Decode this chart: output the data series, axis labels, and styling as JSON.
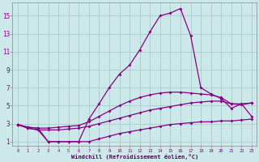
{
  "background_color": "#cce8e8",
  "grid_color": "#aacccc",
  "line_color": "#880088",
  "xlabel": "Windchill (Refroidissement éolien,°C)",
  "xlabel_color": "#550055",
  "ylabel_ticks": [
    1,
    3,
    5,
    7,
    9,
    11,
    13,
    15
  ],
  "xlim": [
    -0.5,
    23.5
  ],
  "ylim": [
    0.5,
    16.5
  ],
  "xticks": [
    0,
    1,
    2,
    3,
    4,
    5,
    6,
    7,
    8,
    9,
    10,
    11,
    12,
    13,
    14,
    15,
    16,
    17,
    18,
    19,
    20,
    21,
    22,
    23
  ],
  "curve1_x": [
    0,
    1,
    2,
    3,
    4,
    5,
    6,
    7,
    8,
    9,
    10,
    11,
    12,
    13,
    14,
    15,
    16,
    17,
    18,
    19,
    20,
    21,
    22,
    23
  ],
  "curve1_y": [
    2.9,
    2.5,
    2.3,
    1.0,
    1.0,
    1.0,
    1.0,
    1.0,
    1.3,
    1.6,
    1.9,
    2.1,
    2.3,
    2.5,
    2.7,
    2.9,
    3.0,
    3.1,
    3.2,
    3.2,
    3.3,
    3.3,
    3.4,
    3.5
  ],
  "curve2_x": [
    0,
    1,
    2,
    3,
    4,
    5,
    6,
    7,
    8,
    9,
    10,
    11,
    12,
    13,
    14,
    15,
    16,
    17,
    18,
    19,
    20,
    21,
    22,
    23
  ],
  "curve2_y": [
    2.9,
    2.5,
    2.3,
    2.3,
    2.3,
    2.4,
    2.5,
    2.7,
    3.0,
    3.3,
    3.6,
    3.9,
    4.2,
    4.5,
    4.7,
    4.9,
    5.1,
    5.3,
    5.4,
    5.5,
    5.5,
    5.2,
    5.2,
    5.3
  ],
  "curve3_x": [
    0,
    1,
    2,
    3,
    4,
    5,
    6,
    7,
    8,
    9,
    10,
    11,
    12,
    13,
    14,
    15,
    16,
    17,
    18,
    19,
    20,
    21,
    22,
    23
  ],
  "curve3_y": [
    2.9,
    2.6,
    2.5,
    2.5,
    2.6,
    2.7,
    2.8,
    3.2,
    3.8,
    4.4,
    5.0,
    5.5,
    5.9,
    6.2,
    6.4,
    6.5,
    6.5,
    6.4,
    6.3,
    6.2,
    5.9,
    5.2,
    5.1,
    5.3
  ],
  "curve4_x": [
    0,
    1,
    2,
    3,
    4,
    5,
    6,
    7,
    8,
    9,
    10,
    11,
    12,
    13,
    14,
    15,
    16,
    17,
    18,
    19,
    20,
    21,
    22,
    23
  ],
  "curve4_y": [
    2.9,
    2.6,
    2.5,
    1.0,
    1.0,
    1.0,
    1.0,
    3.5,
    5.2,
    7.0,
    8.5,
    9.5,
    11.2,
    13.2,
    15.0,
    15.3,
    15.8,
    12.8,
    7.0,
    6.3,
    5.8,
    4.7,
    5.2,
    3.8
  ],
  "marker": "D",
  "markersize": 2.0,
  "linewidth": 0.9
}
